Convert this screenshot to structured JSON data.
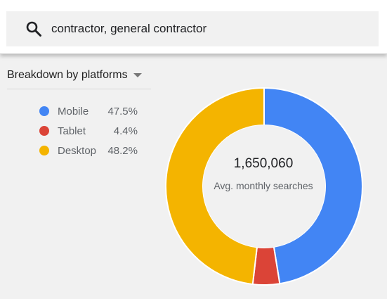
{
  "search": {
    "value": "contractor, general contractor"
  },
  "breakdown": {
    "label": "Breakdown by platforms"
  },
  "chart_data": {
    "type": "pie",
    "categories": [
      "Mobile",
      "Tablet",
      "Desktop"
    ],
    "values": [
      47.5,
      4.4,
      48.2
    ],
    "labels": [
      "47.5%",
      "4.4%",
      "48.2%"
    ],
    "colors": [
      "#4285f4",
      "#db4437",
      "#f4b400"
    ],
    "total": "1,650,060",
    "total_label": "Avg. monthly searches",
    "legend": "left"
  }
}
